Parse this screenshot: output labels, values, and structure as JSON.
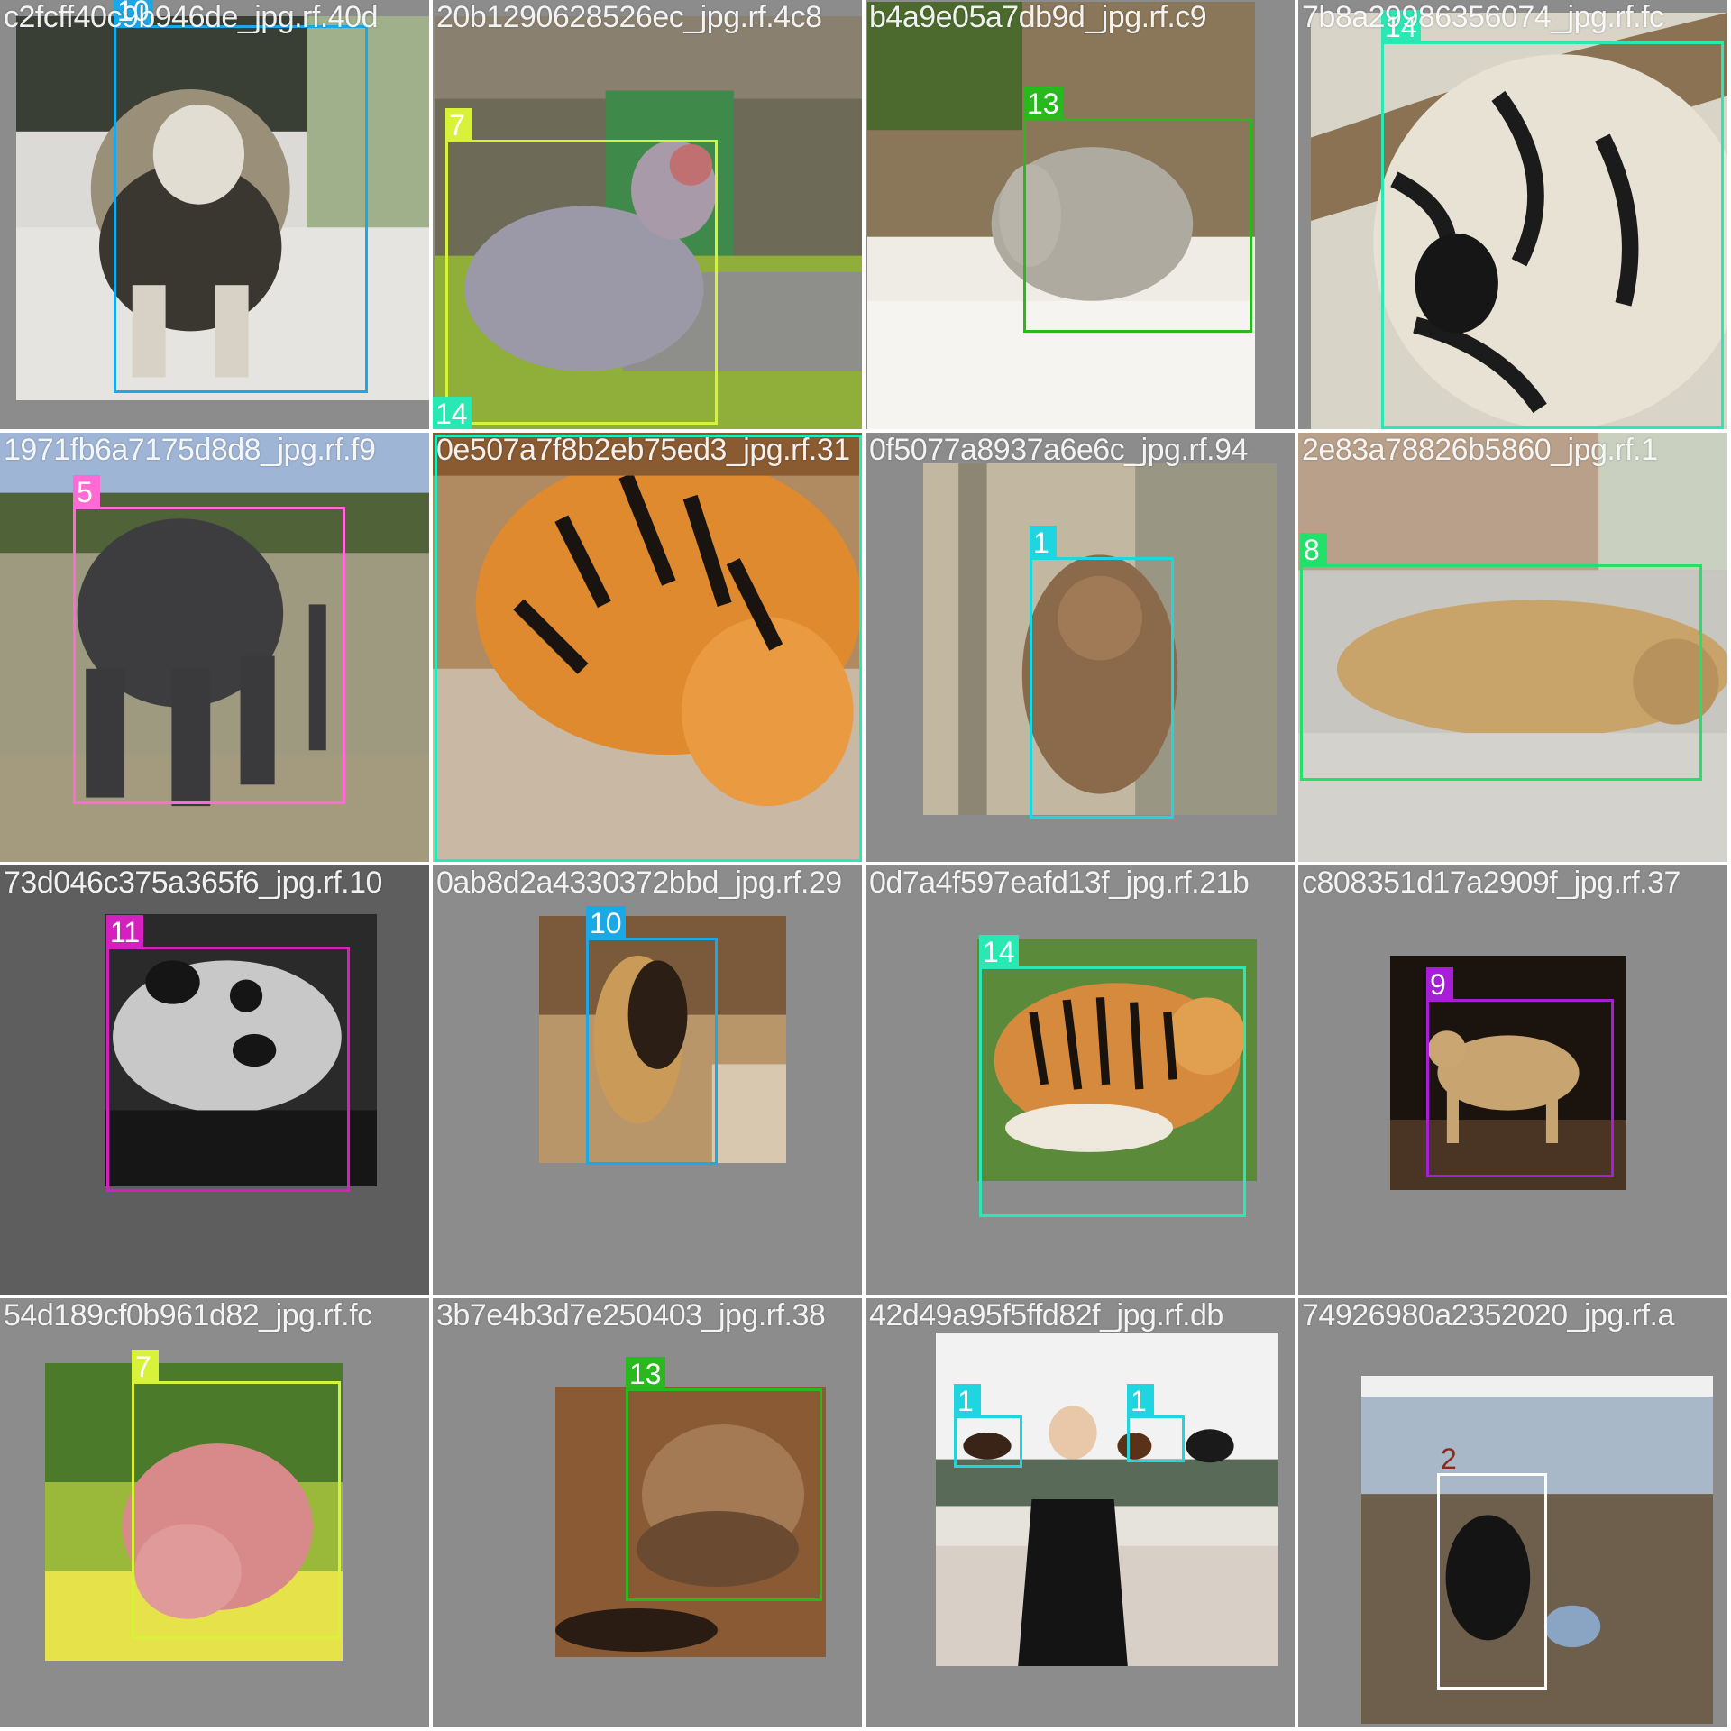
{
  "class_colors": {
    "1": "#1fd6e0",
    "2": "#ffffff",
    "5": "#ff6ad5",
    "7": "#d8f23a",
    "8": "#22e06a",
    "9": "#a61fd6",
    "10": "#1aa8e6",
    "11": "#d61fbf",
    "13": "#2ab81f",
    "14": "#2ae8b4"
  },
  "tiles": [
    {
      "name": "c2fcff40c9b946de_jpg.rf.40d",
      "boxes": [
        {
          "label": "10"
        }
      ]
    },
    {
      "name": "20b1290628526ec_jpg.rf.4c8",
      "boxes": [
        {
          "label": "7"
        },
        {
          "label": "14"
        }
      ]
    },
    {
      "name": "b4a9e05a7db9d_jpg.rf.c9",
      "boxes": [
        {
          "label": "13"
        }
      ]
    },
    {
      "name": "7b8a29986356074_jpg.rf.fc",
      "boxes": [
        {
          "label": "14"
        }
      ]
    },
    {
      "name": "1971fb6a7175d8d8_jpg.rf.f9",
      "boxes": [
        {
          "label": "5"
        }
      ]
    },
    {
      "name": "0e507a7f8b2eb75ed3_jpg.rf.31",
      "boxes": [
        {
          "label": "14"
        }
      ]
    },
    {
      "name": "0f5077a8937a6e6c_jpg.rf.94",
      "boxes": [
        {
          "label": "1"
        }
      ]
    },
    {
      "name": "2e83a78826b5860_jpg.rf.1",
      "boxes": [
        {
          "label": "8"
        }
      ]
    },
    {
      "name": "73d046c375a365f6_jpg.rf.10",
      "boxes": [
        {
          "label": "11"
        }
      ]
    },
    {
      "name": "0ab8d2a4330372bbd_jpg.rf.29",
      "boxes": [
        {
          "label": "10"
        }
      ]
    },
    {
      "name": "0d7a4f597eafd13f_jpg.rf.21b",
      "boxes": [
        {
          "label": "14"
        }
      ]
    },
    {
      "name": "c808351d17a2909f_jpg.rf.37",
      "boxes": [
        {
          "label": "9"
        }
      ]
    },
    {
      "name": "54d189cf0b961d82_jpg.rf.fc",
      "boxes": [
        {
          "label": "7"
        }
      ]
    },
    {
      "name": "3b7e4b3d7e250403_jpg.rf.38",
      "boxes": [
        {
          "label": "13"
        }
      ]
    },
    {
      "name": "42d49a95f5ffd82f_jpg.rf.db",
      "boxes": [
        {
          "label": "1"
        },
        {
          "label": "1"
        }
      ]
    },
    {
      "name": "74926980a2352020_jpg.rf.a",
      "boxes": [
        {
          "label": "2"
        }
      ]
    }
  ]
}
